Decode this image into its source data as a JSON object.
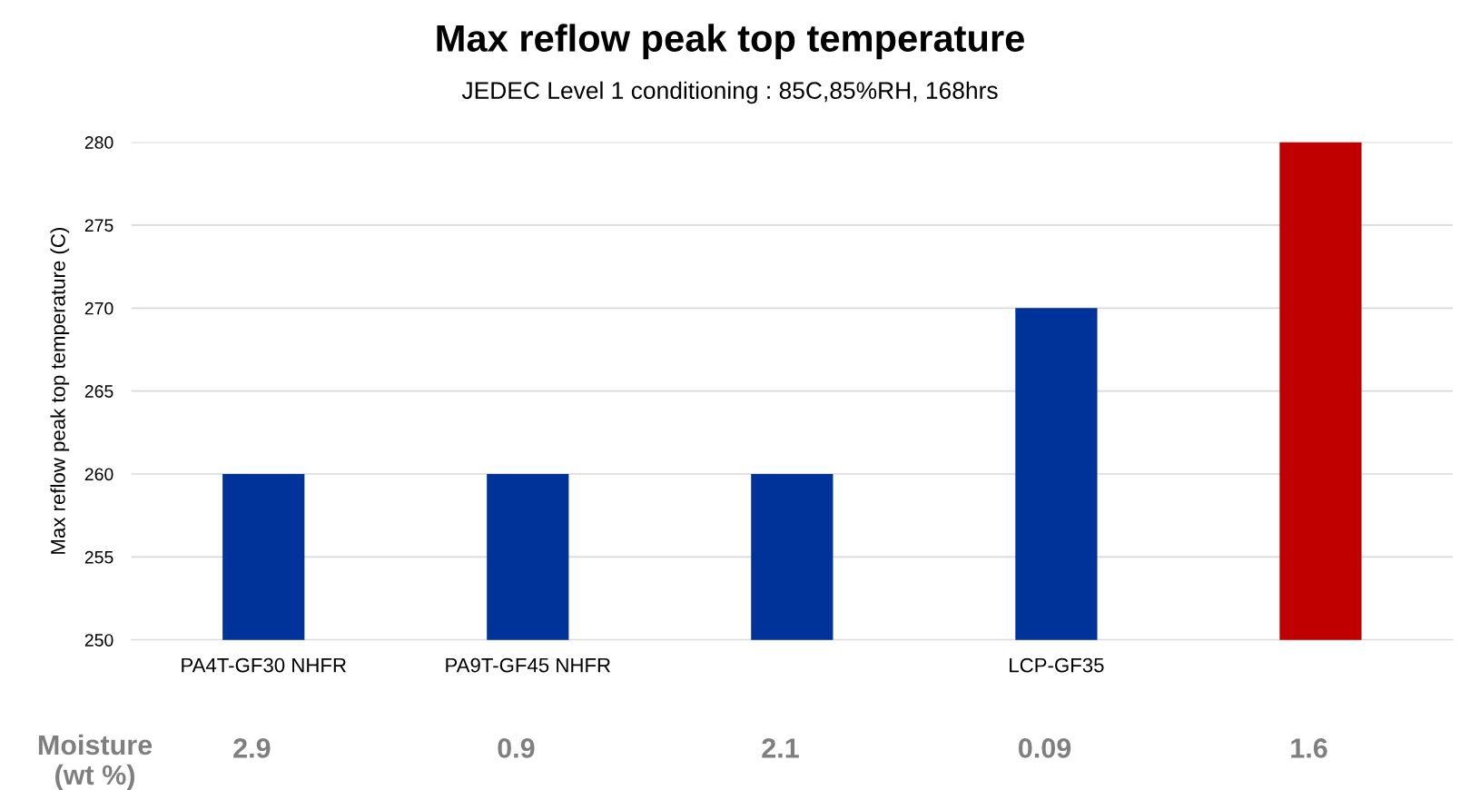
{
  "chart_data": {
    "type": "bar",
    "title": "Max reflow peak top temperature",
    "subtitle": "JEDEC Level 1 conditioning : 85C,85%RH, 168hrs",
    "ylabel": "Max reflow peak top temperature (C)",
    "categories": [
      "PA4T-GF30 NHFR",
      "PA9T-GF45 NHFR",
      null,
      "LCP-GF35",
      null
    ],
    "values": [
      260,
      260,
      260,
      270,
      280
    ],
    "colors": [
      "#003399",
      "#003399",
      "#003399",
      "#003399",
      "#c00000"
    ],
    "ylim": [
      250,
      280
    ],
    "yticks": [
      250,
      255,
      260,
      265,
      270,
      275,
      280
    ],
    "grid": "y",
    "legend": false,
    "annotations": [
      "Moisture\n(wt %)",
      "2.9",
      "0.9",
      "2.1",
      "0.09",
      "1.6"
    ]
  }
}
